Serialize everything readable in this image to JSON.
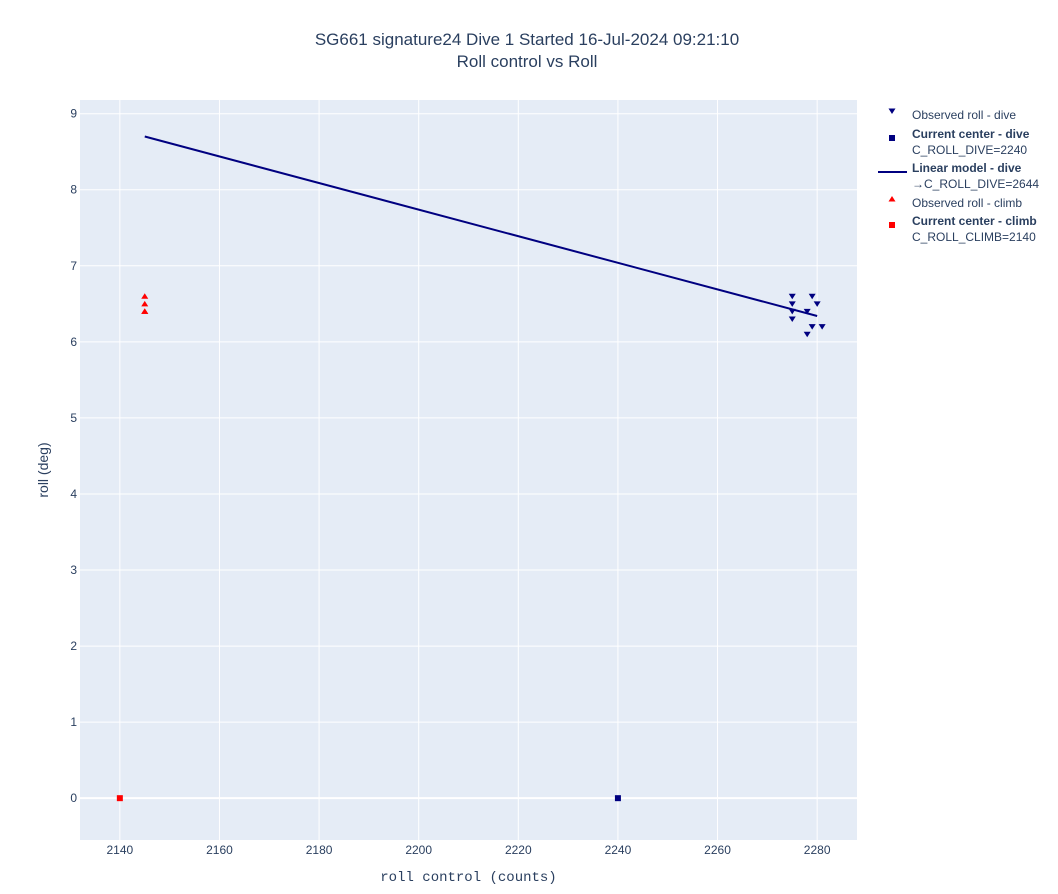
{
  "chart_data": {
    "type": "scatter",
    "title": "SG661 signature24 Dive 1 Started 16-Jul-2024 09:21:10",
    "subtitle": "Roll control vs Roll",
    "xlabel": "roll control (counts)",
    "ylabel": "roll (deg)",
    "xlim": [
      2132,
      2288
    ],
    "ylim": [
      -0.55,
      9.18
    ],
    "xticks": [
      2140,
      2160,
      2180,
      2200,
      2220,
      2240,
      2260,
      2280
    ],
    "yticks": [
      0,
      1,
      2,
      3,
      4,
      5,
      6,
      7,
      8,
      9
    ],
    "grid": true,
    "legend_position": "right",
    "series": [
      {
        "name": "Observed roll - dive",
        "kind": "scatter",
        "marker": "triangle-down",
        "color": "#000080",
        "x": [
          2275,
          2275,
          2275,
          2275,
          2279,
          2278,
          2280,
          2278,
          2279,
          2281
        ],
        "y": [
          6.6,
          6.5,
          6.4,
          6.3,
          6.6,
          6.4,
          6.5,
          6.1,
          6.2,
          6.2
        ]
      },
      {
        "name": "Current center - dive",
        "name2": "C_ROLL_DIVE=2240",
        "kind": "scatter",
        "marker": "square",
        "color": "#000080",
        "x": [
          2240
        ],
        "y": [
          0
        ]
      },
      {
        "name": "Linear model - dive",
        "name2": "→C_ROLL_DIVE=2644",
        "kind": "line",
        "color": "#000080",
        "x": [
          2145,
          2280
        ],
        "y": [
          8.7,
          6.34
        ]
      },
      {
        "name": "Observed roll - climb",
        "kind": "scatter",
        "marker": "triangle-up",
        "color": "#ff0000",
        "x": [
          2145,
          2145,
          2145,
          2145
        ],
        "y": [
          6.6,
          6.5,
          6.4,
          6.4
        ]
      },
      {
        "name": "Current center - climb",
        "name2": "C_ROLL_CLIMB=2140",
        "kind": "scatter",
        "marker": "square",
        "color": "#ff0000",
        "x": [
          2140
        ],
        "y": [
          0
        ]
      }
    ]
  }
}
